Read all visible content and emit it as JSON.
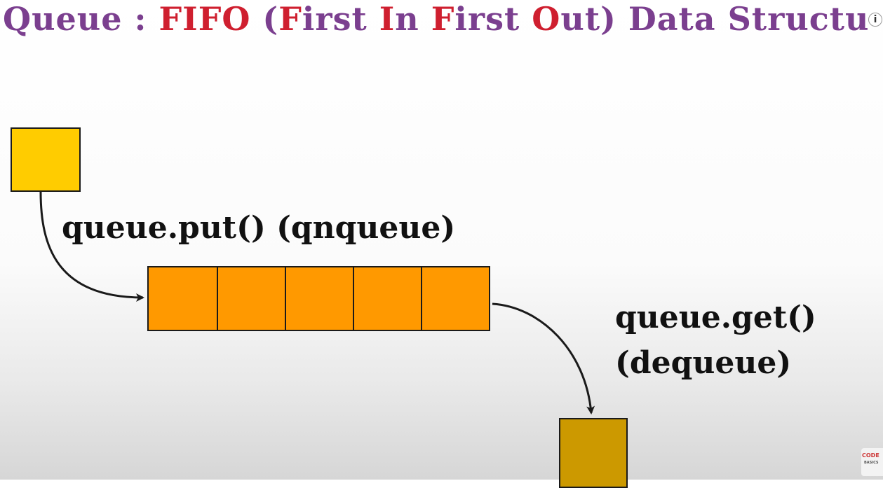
{
  "title": {
    "part1": "Queue : ",
    "fifo": "FIFO",
    "open_paren": " (",
    "f1": "F",
    "irst1": "irst ",
    "i": "I",
    "n": "n ",
    "f2": "F",
    "irst2": "irst ",
    "o": "O",
    "ut": "ut",
    "close_paren": ")",
    "rest": " Data Structu"
  },
  "labels": {
    "put": "queue.put()  (qnqueue)",
    "get": "queue.get()",
    "dequeue": "(dequeue)"
  },
  "queue_cells": 5,
  "colors": {
    "title_purple": "#7b3f8f",
    "title_red": "#cf1f2f",
    "new_item": "#ffcc00",
    "queue_cell": "#ff9900",
    "out_item": "#cc9900"
  },
  "icons": {
    "info": "i",
    "watermark_top": "CODE",
    "watermark_bottom": "BASICS"
  }
}
